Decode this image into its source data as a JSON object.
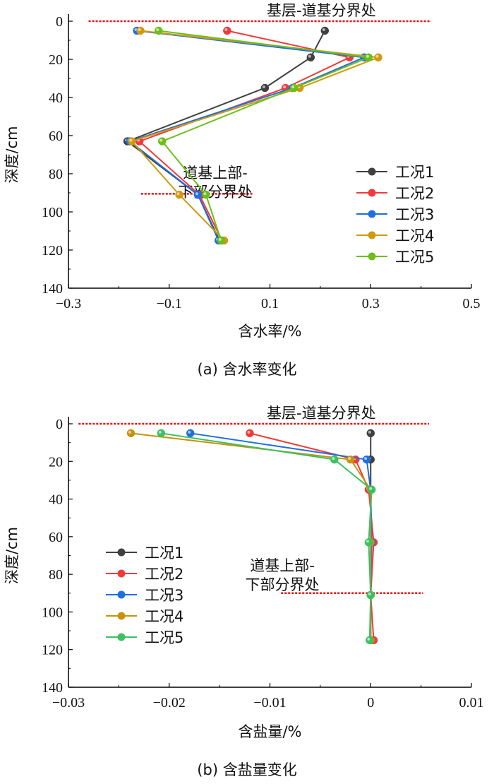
{
  "chart_data": [
    {
      "type": "line",
      "caption": "(a)  含水率变化",
      "xlabel": "含水率/%",
      "ylabel": "深度/cm",
      "xlim": [
        -0.3,
        0.5
      ],
      "ylim": [
        0,
        140
      ],
      "y_inverted": true,
      "xticks": [
        -0.3,
        -0.1,
        0.1,
        0.3,
        0.5
      ],
      "xtick_labels": [
        "−0.3",
        "−0.1",
        "0.1",
        "0.3",
        "0.5"
      ],
      "yticks": [
        0,
        20,
        40,
        60,
        80,
        100,
        120,
        140
      ],
      "ytick_labels": [
        "0",
        "20",
        "40",
        "60",
        "80",
        "100",
        "120",
        "140"
      ],
      "legend_position": "right",
      "depth": [
        5,
        19,
        35,
        63,
        91,
        115
      ],
      "series": [
        {
          "name": "工况1",
          "color": "#404040",
          "values": [
            0.209,
            0.181,
            0.09,
            -0.183,
            -0.043,
            0.0
          ]
        },
        {
          "name": "工况2",
          "color": "#f03a3a",
          "values": [
            0.015,
            0.258,
            0.131,
            -0.159,
            -0.04,
            0.005
          ]
        },
        {
          "name": "工况3",
          "color": "#1f6fe0",
          "values": [
            -0.164,
            0.287,
            0.145,
            -0.178,
            -0.043,
            -0.002
          ]
        },
        {
          "name": "工况4",
          "color": "#d09a10",
          "values": [
            -0.157,
            0.315,
            0.159,
            -0.174,
            -0.08,
            0.009
          ]
        },
        {
          "name": "工况5",
          "color": "#6cbf1a",
          "values": [
            -0.121,
            0.296,
            0.148,
            -0.114,
            -0.027,
            0.003
          ]
        }
      ],
      "annotations": [
        {
          "text": "基层-道基分界处",
          "depth": 0,
          "x_range": [
            -0.26,
            0.42
          ]
        },
        {
          "text": "道基上部-\n下部分界处",
          "lines": [
            "道基上部-",
            "下部分界处"
          ],
          "depth": 90.5,
          "x_range": [
            -0.156,
            0.065
          ]
        }
      ]
    },
    {
      "type": "line",
      "caption": "(b)  含盐量变化",
      "xlabel": "含盐量/%",
      "ylabel": "深度/cm",
      "xlim": [
        -0.03,
        0.01
      ],
      "ylim": [
        0,
        140
      ],
      "y_inverted": true,
      "xticks": [
        -0.03,
        -0.02,
        -0.01,
        0,
        0.01
      ],
      "xtick_labels": [
        "−0.03",
        "−0.02",
        "−0.01",
        "0",
        "0.01"
      ],
      "yticks": [
        0,
        20,
        40,
        60,
        80,
        100,
        120,
        140
      ],
      "ytick_labels": [
        "0",
        "20",
        "40",
        "60",
        "80",
        "100",
        "120",
        "140"
      ],
      "legend_position": "left",
      "depth": [
        5,
        19,
        35,
        63,
        91,
        115
      ],
      "series": [
        {
          "name": "工况1",
          "color": "#404040",
          "values": [
            0.0,
            0.0,
            0.0,
            0.0,
            0.0,
            0.0
          ]
        },
        {
          "name": "工况2",
          "color": "#f03a3a",
          "values": [
            -0.012,
            -0.0015,
            -0.0002,
            0.0003,
            0.0,
            0.0003
          ]
        },
        {
          "name": "工况3",
          "color": "#1f6fe0",
          "values": [
            -0.0179,
            -0.0004,
            0.0,
            0.0001,
            0.0,
            0.0
          ]
        },
        {
          "name": "工况4",
          "color": "#c8920e",
          "values": [
            -0.0238,
            -0.002,
            0.0,
            0.0,
            0.0,
            0.0
          ]
        },
        {
          "name": "工况5",
          "color": "#3cc060",
          "values": [
            -0.0208,
            -0.0036,
            0.0001,
            -0.0002,
            0.0,
            -0.0001
          ]
        }
      ],
      "annotations": [
        {
          "text": "基层-道基分界处",
          "depth": 0,
          "x_range": [
            -0.029,
            0.0058
          ]
        },
        {
          "text": "道基上部-\n下部分界处",
          "lines": [
            "道基上部-",
            "下部分界处"
          ],
          "depth": 90,
          "x_range": [
            -0.0089,
            0.0052
          ]
        }
      ]
    }
  ]
}
